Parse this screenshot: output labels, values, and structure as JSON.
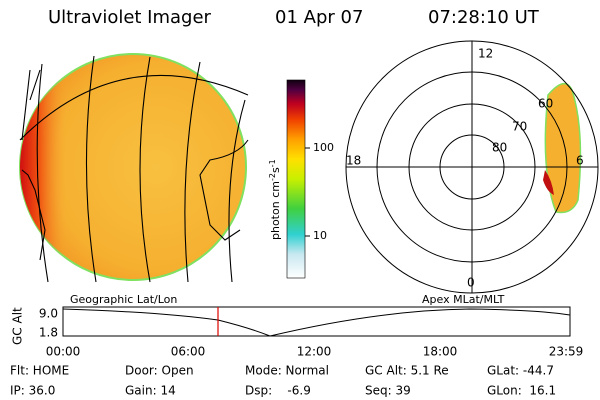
{
  "header": {
    "instrument": "Ultraviolet Imager",
    "date": "01 Apr 07",
    "time": "07:28:10 UT"
  },
  "colorbar": {
    "title": "photon cm",
    "exp1": "-2",
    "mid": "s",
    "exp2": "-1",
    "ticks": [
      "100",
      "10"
    ]
  },
  "polar": {
    "mlt_labels": [
      "12",
      "18",
      "6",
      "0"
    ],
    "mlat_labels": [
      "60",
      "70",
      "80"
    ]
  },
  "altitude_plot": {
    "left_title": "Geographic Lat/Lon",
    "right_title": "Apex MLat/MLT",
    "ylabel": "GC Alt",
    "yticks": [
      "9.0",
      "1.8"
    ],
    "xticks": [
      "00:00",
      "06:00",
      "12:00",
      "18:00",
      "23:59"
    ]
  },
  "info": {
    "rows": [
      [
        "Flt: HOME",
        "Door: Open",
        "Mode: Normal",
        "GC Alt: 5.1 Re",
        "GLat: -44.7"
      ],
      [
        "IP: 36.0",
        "Gain: 14",
        "Dsp:    -6.9",
        "Seq: 39",
        "GLon:  16.1"
      ]
    ]
  }
}
